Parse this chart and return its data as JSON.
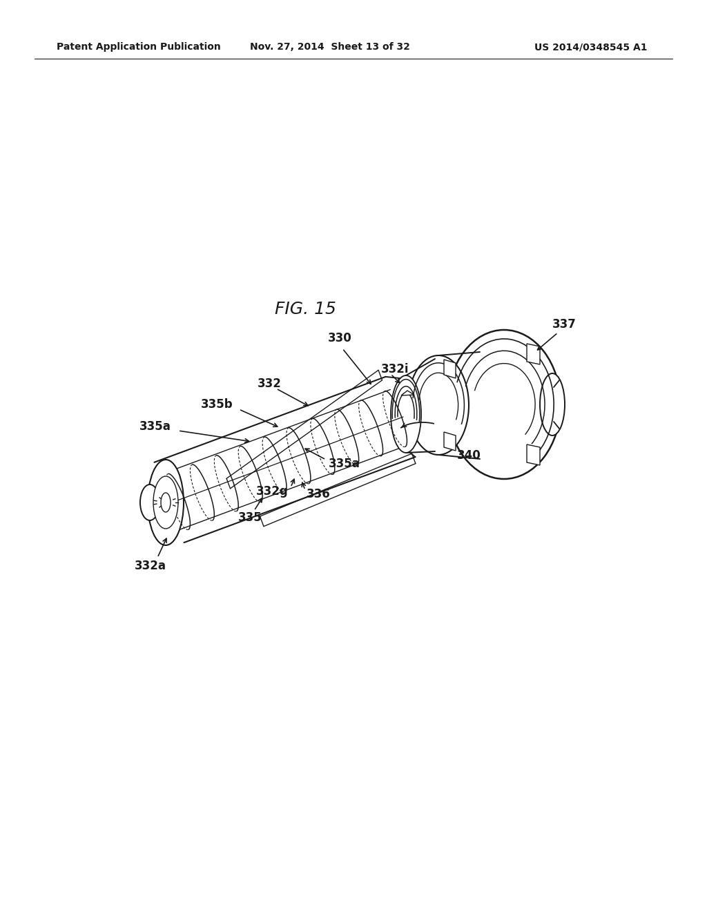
{
  "background": "#ffffff",
  "lc": "#1a1a1a",
  "header_left": "Patent Application Publication",
  "header_center": "Nov. 27, 2014  Sheet 13 of 32",
  "header_right": "US 2014/0348545 A1",
  "fig_title": "FIG. 15"
}
